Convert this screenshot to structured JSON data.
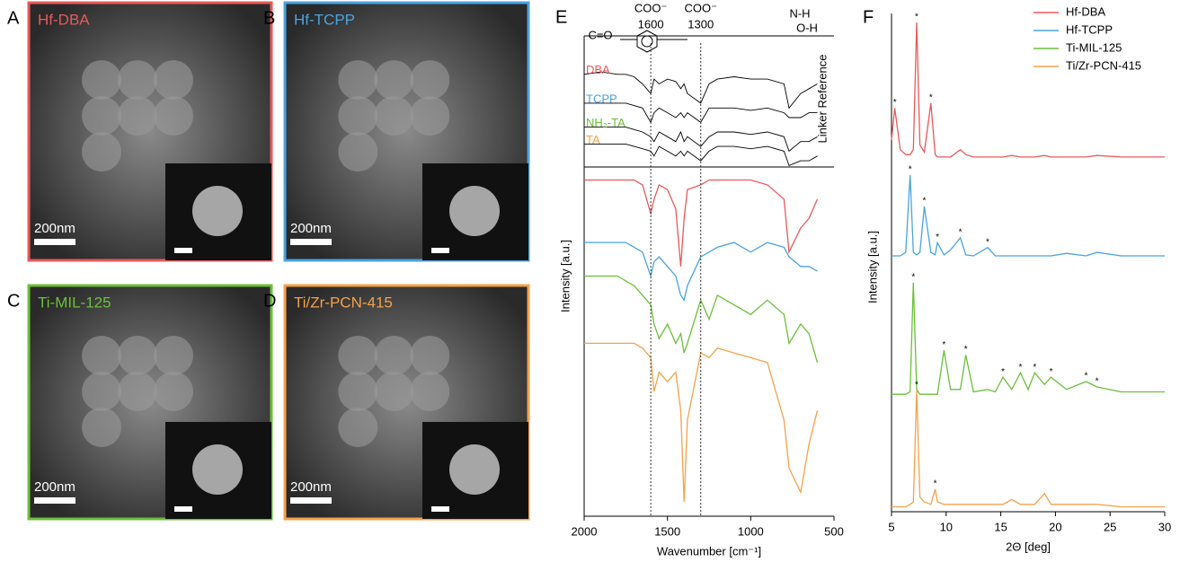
{
  "panels": [
    {
      "letter": "A",
      "label": "Hf-DBA",
      "scale": "200nm",
      "color": "#e8595c"
    },
    {
      "letter": "B",
      "label": "Hf-TCPP",
      "scale": "200nm",
      "color": "#4aa3df"
    },
    {
      "letter": "C",
      "label": "Ti-MIL-125",
      "scale": "200nm",
      "color": "#6cbf3a"
    },
    {
      "letter": "D",
      "label": "Ti/Zr-PCN-415",
      "scale": "200nm",
      "color": "#f5a14a"
    }
  ],
  "chart_data": [
    {
      "type": "line",
      "letter": "E",
      "xlabel": "Wavenumber [cm⁻¹]",
      "ylabel": "Intensity [a.u.]",
      "x": [
        2000,
        1900,
        1800,
        1750,
        1700,
        1650,
        1600,
        1580,
        1550,
        1500,
        1450,
        1420,
        1400,
        1380,
        1300,
        1250,
        1200,
        1100,
        1000,
        900,
        800,
        770,
        700,
        650,
        600
      ],
      "xlim": [
        2000,
        500
      ],
      "xticks": [
        2000,
        1500,
        1000,
        500
      ],
      "ylim": [
        0,
        100
      ],
      "group_label": "COO⁻",
      "marker_lines": [
        1600,
        1300
      ],
      "band_labels": [
        "C=O",
        "N-H",
        "O-H"
      ],
      "series": [
        {
          "name": "Hf-DBA",
          "color": "#e8595c",
          "values": [
            70,
            70,
            70,
            70,
            70,
            69,
            63,
            66,
            69,
            68,
            64,
            52,
            62,
            68,
            69,
            70,
            70,
            70,
            70,
            69,
            66,
            55,
            60,
            62,
            66
          ]
        },
        {
          "name": "Hf-TCPP",
          "color": "#4aa3df",
          "values": [
            57,
            57,
            57,
            57,
            56,
            55,
            50,
            53,
            54,
            52,
            50,
            46,
            45,
            48,
            54,
            55,
            56,
            57,
            55,
            57,
            56,
            54,
            52,
            52,
            51
          ]
        },
        {
          "name": "Ti-MIL-125",
          "color": "#6cbf3a",
          "values": [
            50,
            50,
            50,
            49,
            48,
            46,
            44,
            40,
            37,
            40,
            36,
            38,
            34,
            36,
            45,
            41,
            46,
            44,
            42,
            45,
            42,
            36,
            40,
            38,
            32
          ]
        },
        {
          "name": "Ti/Zr-PCN-415",
          "color": "#f5a14a",
          "values": [
            36,
            36,
            36,
            36,
            36,
            35,
            33,
            26,
            30,
            28,
            30,
            22,
            3,
            20,
            34,
            33,
            35,
            34,
            33,
            32,
            20,
            10,
            5,
            15,
            22
          ]
        }
      ],
      "reference": {
        "label": "Linker Reference",
        "line_color": "#000000",
        "series": [
          {
            "name": "DBA",
            "color": "#e8595c",
            "values": [
              92,
              92.5,
              92,
              92,
              91.5,
              90,
              88,
              91,
              90,
              91,
              90.5,
              89,
              90,
              88,
              86,
              90,
              91,
              91.5,
              91,
              91,
              90,
              85,
              88,
              89,
              90
            ]
          },
          {
            "name": "TCPP",
            "color": "#4aa3df",
            "values": [
              86,
              86,
              86,
              86,
              85.5,
              85,
              82,
              84,
              85,
              84,
              83,
              84,
              83,
              84,
              82,
              85,
              85,
              85,
              84.5,
              85,
              84,
              83,
              83,
              84,
              84
            ]
          },
          {
            "name": "NH₂-TA",
            "color": "#6cbf3a",
            "values": [
              81,
              81,
              81,
              81,
              80.5,
              80,
              79,
              78,
              80,
              79,
              78,
              80,
              78,
              79,
              77,
              79,
              80,
              80,
              79.5,
              80,
              79,
              76,
              78,
              78,
              79
            ]
          },
          {
            "name": "TA",
            "color": "#f5a14a",
            "values": [
              77.5,
              77.5,
              77.5,
              77.5,
              77,
              76.5,
              76,
              75,
              77,
              76,
              75,
              76,
              75,
              76,
              74,
              76,
              77,
              77,
              76.5,
              77,
              76,
              73,
              74,
              74,
              75
            ]
          }
        ]
      }
    },
    {
      "type": "line",
      "letter": "F",
      "xlabel": "2Θ [deg]",
      "ylabel": "Intensity [a.u.]",
      "x": [
        5,
        5.3,
        5.8,
        6.3,
        6.7,
        7,
        7.3,
        7.6,
        8,
        8.6,
        9,
        9.2,
        9.8,
        10.4,
        11.3,
        11.8,
        12.5,
        13.8,
        14.5,
        15.2,
        16,
        16.8,
        17.5,
        18.1,
        19,
        19.6,
        21,
        22.8,
        23.8,
        26,
        30
      ],
      "xlim": [
        5,
        30
      ],
      "xticks": [
        5,
        10,
        15,
        20,
        25,
        30
      ],
      "ylim": [
        0,
        100
      ],
      "peak_label": "*",
      "legend": "upper right",
      "series": [
        {
          "name": "Hf-DBA",
          "color": "#e8595c",
          "peaks": [
            5.3,
            7.3,
            8.6
          ],
          "values": [
            76,
            82.5,
            74,
            73,
            73,
            74,
            100,
            75,
            73.5,
            83.5,
            73,
            72.5,
            72.5,
            72.5,
            74,
            73,
            72.5,
            72.5,
            72.5,
            72.5,
            72.8,
            72.5,
            72.5,
            72.5,
            72.8,
            72.5,
            72.5,
            72.5,
            72.8,
            72.5,
            72.5
          ]
        },
        {
          "name": "Hf-TCPP",
          "color": "#4aa3df",
          "peaks": [
            6.7,
            8,
            9.2,
            11.3,
            13.8
          ],
          "values": [
            52.3,
            52.3,
            52.3,
            53,
            68.8,
            53,
            52.5,
            53,
            62.4,
            53,
            52.5,
            55,
            52.5,
            53.5,
            56,
            52.5,
            52.3,
            54,
            52.3,
            52.3,
            52.3,
            52.3,
            52.3,
            52.3,
            52.3,
            52.3,
            52.8,
            52.3,
            53,
            52.3,
            52.3
          ]
        },
        {
          "name": "Ti-MIL-125",
          "color": "#6cbf3a",
          "peaks": [
            7,
            9.8,
            11.8,
            15.2,
            16.8,
            18.1,
            19.6,
            22.8,
            23.8
          ],
          "values": [
            24,
            24,
            24,
            24,
            24.5,
            46.8,
            25,
            24,
            24,
            24,
            24,
            24,
            33,
            25,
            25,
            32,
            24.5,
            25,
            24.5,
            27.5,
            25,
            28.4,
            25,
            28.4,
            26,
            27.5,
            25,
            26.6,
            25.5,
            24.5,
            24.5
          ]
        },
        {
          "name": "Ti/Zr-PCN-415",
          "color": "#f5a14a",
          "peaks": [
            7.3,
            9
          ],
          "values": [
            1,
            1,
            1,
            1,
            1.5,
            2,
            24.8,
            3,
            2,
            1.5,
            4.6,
            2,
            1.5,
            1.5,
            1.5,
            1.5,
            1.5,
            1.5,
            1.5,
            1.5,
            2.5,
            1.5,
            1.5,
            1.5,
            3.7,
            1.5,
            1.5,
            1.5,
            1.5,
            1,
            1
          ]
        }
      ]
    }
  ]
}
